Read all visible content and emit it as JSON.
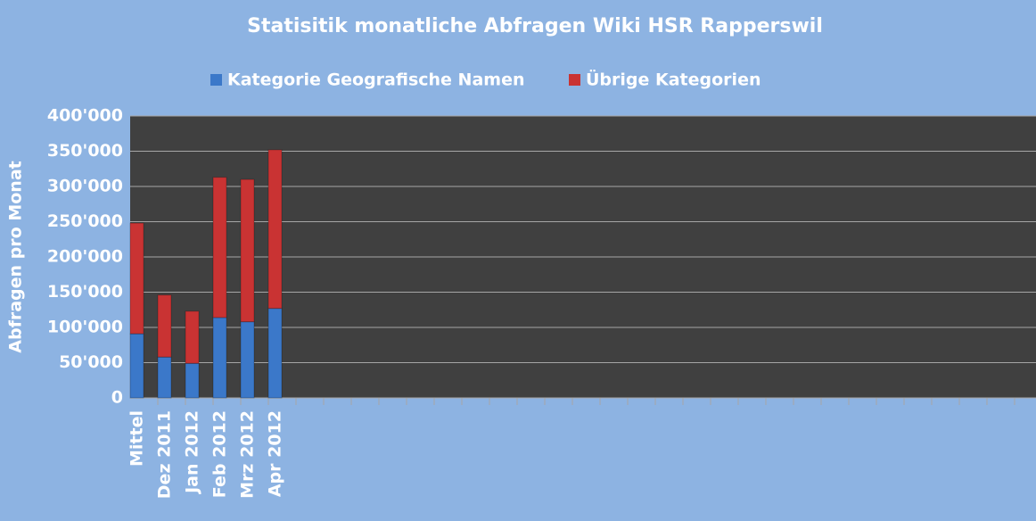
{
  "chart_data": {
    "type": "stacked-bar",
    "title": "Statisitik monatliche Abfragen Wiki HSR Rapperswil",
    "y_label": "Abfragen pro Monat",
    "categories": [
      "Mittel",
      "Dez 2011",
      "Jan 2012",
      "Feb 2012",
      "Mrz 2012",
      "Apr 2012",
      null,
      null,
      null,
      null,
      null,
      null,
      null,
      null,
      null,
      null,
      null,
      null,
      null,
      null,
      null,
      null,
      null,
      null,
      null,
      null,
      null,
      null,
      null,
      null,
      null,
      null,
      null
    ],
    "series": [
      {
        "name": "Kategorie Geografische Namen",
        "color": "#3b78c9",
        "values": [
          91000,
          58000,
          49000,
          114000,
          108000,
          127000,
          null,
          null,
          null,
          null,
          null,
          null,
          null,
          null,
          null,
          null,
          null,
          null,
          null,
          null,
          null,
          null,
          null,
          null,
          null,
          null,
          null,
          null,
          null,
          null,
          null,
          null,
          null
        ]
      },
      {
        "name": "Übrige Kategorien",
        "color": "#c93333",
        "values": [
          157000,
          88000,
          74000,
          199000,
          202000,
          225000,
          null,
          null,
          null,
          null,
          null,
          null,
          null,
          null,
          null,
          null,
          null,
          null,
          null,
          null,
          null,
          null,
          null,
          null,
          null,
          null,
          null,
          null,
          null,
          null,
          null,
          null,
          null
        ]
      }
    ],
    "ylim": [
      0,
      400000
    ],
    "yticks": [
      0,
      {
        "value": 50000,
        "label": "50'000"
      },
      {
        "value": 100000,
        "label": "100'000"
      },
      {
        "value": 150000,
        "label": "150'000"
      },
      {
        "value": 200000,
        "label": "200'000"
      },
      {
        "value": 250000,
        "label": "250'000"
      },
      {
        "value": 300000,
        "label": "300'000"
      },
      {
        "value": 350000,
        "label": "350'000"
      },
      {
        "value": 400000,
        "label": "400'000"
      }
    ],
    "grid": true,
    "legend": "top"
  }
}
